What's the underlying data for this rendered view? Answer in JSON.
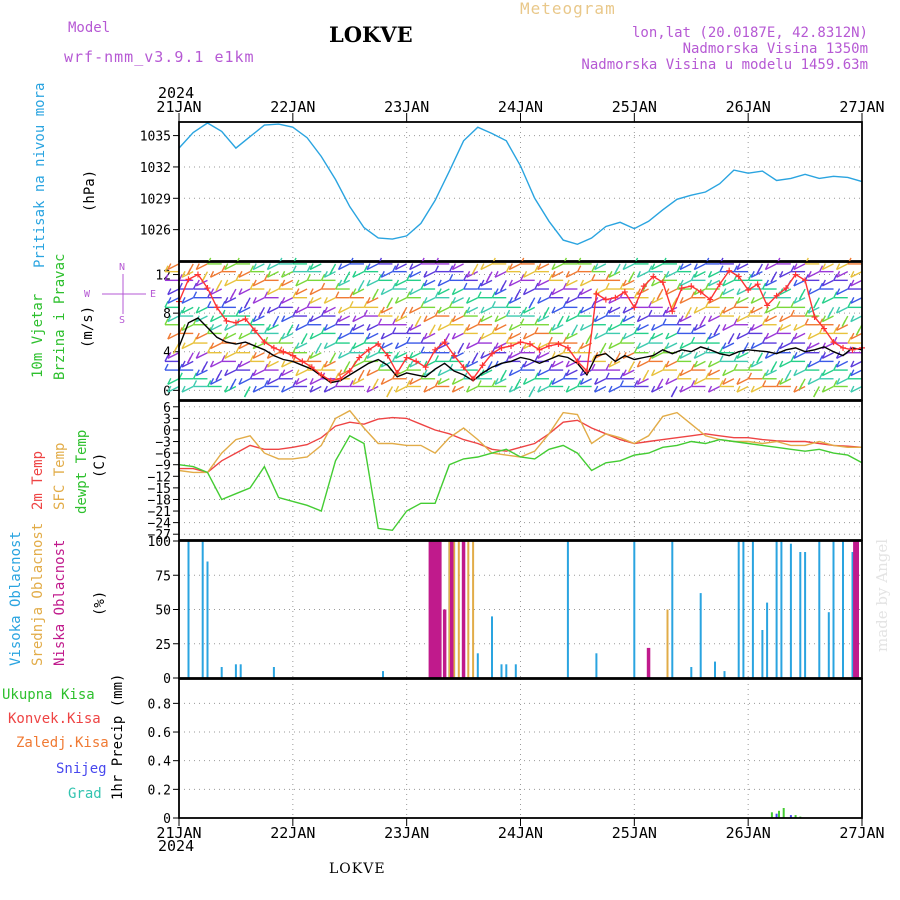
{
  "header": {
    "model_label": "Model",
    "model_name": "wrf-nmm_v3.9.1 e1km",
    "station": "LOKVE",
    "meteogram": "Meteogram",
    "lonlat": "lon,lat (20.0187E, 42.8312N)",
    "elev": "Nadmorska Visina 1350m",
    "elev_model": "Nadmorska Visina u modelu 1459.63m",
    "year_top": "2024",
    "year_bottom": "2024",
    "footer": "LOKVE",
    "watermark": "made by Angel"
  },
  "chart_data": [
    {
      "type": "line",
      "panel": "pressure",
      "ylabel_parts": [
        "Pritisak na nivou mora",
        "(hPa)"
      ],
      "ylim": [
        1023,
        1036.3
      ],
      "yticks": [
        1026,
        1029,
        1032,
        1035
      ],
      "ytick_labels": [
        "1026",
        "1029",
        "1032",
        "1035"
      ],
      "grid": true,
      "colors": [
        "#2aa4e0"
      ],
      "series": [
        {
          "name": "Pritisak na nivou mora",
          "x": [
            0,
            3,
            6,
            9,
            12,
            15,
            18,
            21,
            24,
            27,
            30,
            33,
            36,
            39,
            42,
            45,
            48,
            51,
            54,
            57,
            60,
            63,
            66,
            69,
            72,
            75,
            78,
            81,
            84,
            87,
            90,
            93,
            96,
            99,
            102,
            105,
            108,
            111,
            114,
            117,
            120,
            123,
            126,
            129,
            132,
            135,
            138,
            141,
            144
          ],
          "values": [
            1033.8,
            1035.3,
            1036.2,
            1035.4,
            1033.8,
            1034.9,
            1036.0,
            1036.1,
            1035.8,
            1034.8,
            1033.0,
            1030.8,
            1028.2,
            1026.2,
            1025.2,
            1025.1,
            1025.4,
            1026.6,
            1028.8,
            1031.6,
            1034.5,
            1035.8,
            1035.2,
            1034.5,
            1032.1,
            1029.0,
            1026.8,
            1025.0,
            1024.6,
            1025.2,
            1026.3,
            1026.7,
            1026.1,
            1026.8,
            1027.9,
            1028.9,
            1029.3,
            1029.6,
            1030.4,
            1031.7,
            1031.4,
            1031.6,
            1030.7,
            1030.9,
            1031.3,
            1030.9,
            1031.1,
            1031.0,
            1030.6
          ]
        }
      ]
    },
    {
      "type": "line",
      "panel": "wind",
      "ylabel_parts": [
        "10m Vjetar",
        "Brzina i Pravac",
        "(m/s)"
      ],
      "compass": {
        "n": "N",
        "s": "S",
        "e": "E",
        "w": "W"
      },
      "ylim": [
        -1,
        13.3
      ],
      "yticks": [
        0,
        4,
        8,
        12
      ],
      "ytick_labels": [
        "0",
        "4",
        "8",
        "12"
      ],
      "grid": true,
      "colors": [
        "#000000",
        "#ff3333"
      ],
      "series": [
        {
          "name": "Brzina",
          "x": [
            0,
            2,
            4,
            6,
            8,
            10,
            12,
            14,
            16,
            18,
            20,
            22,
            24,
            26,
            28,
            30,
            32,
            34,
            36,
            38,
            40,
            42,
            44,
            46,
            48,
            50,
            52,
            54,
            56,
            58,
            60,
            62,
            64,
            66,
            68,
            70,
            72,
            74,
            76,
            78,
            80,
            82,
            84,
            86,
            88,
            90,
            92,
            94,
            96,
            98,
            100,
            102,
            104,
            106,
            108,
            110,
            112,
            114,
            116,
            118,
            120,
            122,
            124,
            126,
            128,
            130,
            132,
            134,
            136,
            138,
            140,
            142,
            144
          ],
          "values": [
            4.5,
            7.0,
            7.5,
            6.5,
            5.5,
            5.0,
            4.8,
            5.0,
            4.6,
            4.2,
            3.6,
            3.2,
            3.0,
            2.6,
            2.2,
            1.5,
            0.8,
            1.0,
            1.6,
            2.2,
            2.8,
            3.2,
            2.6,
            1.4,
            1.8,
            1.6,
            1.4,
            2.2,
            2.8,
            2.0,
            1.6,
            1.0,
            1.8,
            2.4,
            2.8,
            3.0,
            3.4,
            3.2,
            2.8,
            3.2,
            3.6,
            3.4,
            2.8,
            1.6,
            3.6,
            3.8,
            3.0,
            3.6,
            3.2,
            3.4,
            3.6,
            4.2,
            3.8,
            4.2,
            4.0,
            4.5,
            4.2,
            3.8,
            3.6,
            4.0,
            4.2,
            4.1,
            4.0,
            3.8,
            4.2,
            4.4,
            4.0,
            4.2,
            4.5,
            4.0,
            3.6,
            4.4,
            4.2
          ]
        },
        {
          "name": "Udari",
          "x": [
            0,
            2,
            4,
            6,
            8,
            10,
            12,
            14,
            16,
            18,
            20,
            22,
            24,
            26,
            28,
            30,
            32,
            34,
            36,
            38,
            40,
            42,
            44,
            46,
            48,
            50,
            52,
            54,
            56,
            58,
            60,
            62,
            64,
            66,
            68,
            70,
            72,
            74,
            76,
            78,
            80,
            82,
            84,
            86,
            88,
            90,
            92,
            94,
            96,
            98,
            100,
            102,
            104,
            106,
            108,
            110,
            112,
            114,
            116,
            118,
            120,
            122,
            124,
            126,
            128,
            130,
            132,
            134,
            136,
            138,
            140,
            142,
            144
          ],
          "values": [
            9.2,
            11.5,
            12.0,
            10.6,
            8.6,
            7.2,
            7.0,
            7.4,
            6.2,
            5.0,
            4.4,
            4.0,
            3.6,
            3.0,
            2.4,
            1.6,
            1.0,
            1.2,
            2.0,
            3.4,
            4.2,
            4.8,
            3.6,
            1.8,
            3.4,
            3.0,
            2.4,
            4.2,
            5.0,
            3.6,
            2.4,
            1.2,
            2.6,
            3.8,
            4.4,
            4.6,
            5.0,
            4.8,
            4.2,
            4.6,
            4.8,
            4.4,
            3.0,
            2.0,
            10.0,
            9.4,
            9.6,
            10.2,
            8.6,
            10.8,
            11.8,
            11.2,
            8.2,
            10.6,
            10.8,
            10.2,
            9.4,
            11.0,
            12.4,
            11.8,
            10.4,
            11.0,
            8.8,
            9.8,
            10.6,
            12.0,
            11.4,
            7.6,
            6.4,
            5.0,
            4.4,
            4.2,
            4.4
          ]
        }
      ]
    },
    {
      "type": "line",
      "panel": "temperature",
      "ylabel_parts": [
        "2m Temp",
        "SFC Temp",
        "dewpt Temp",
        "(C)"
      ],
      "ylim": [
        -28.5,
        7.5
      ],
      "yticks": [
        -27,
        -24,
        -21,
        -18,
        -15,
        -12,
        -9,
        -6,
        -3,
        0,
        3,
        6
      ],
      "ytick_labels": [
        "−27",
        "−24",
        "−21",
        "−18",
        "−15",
        "−12",
        "−9",
        "−6",
        "−3",
        "0",
        "3",
        "6"
      ],
      "grid": true,
      "colors": [
        "#ee4444",
        "#e2ac48",
        "#44cc33"
      ],
      "series": [
        {
          "name": "2m Temp",
          "x": [
            0,
            3,
            6,
            9,
            12,
            15,
            18,
            21,
            24,
            27,
            30,
            33,
            36,
            39,
            42,
            45,
            48,
            51,
            54,
            57,
            60,
            63,
            66,
            69,
            72,
            75,
            78,
            81,
            84,
            87,
            90,
            93,
            96,
            99,
            102,
            105,
            108,
            111,
            114,
            117,
            120,
            123,
            126,
            129,
            132,
            135,
            138,
            141,
            144
          ],
          "values": [
            -10,
            -10,
            -11,
            -8,
            -6,
            -4,
            -5,
            -5,
            -4.5,
            -3.8,
            -2,
            1,
            2,
            1.5,
            2.8,
            3.2,
            3,
            1.5,
            0,
            -1,
            -2.5,
            -3.5,
            -5,
            -5.5,
            -4.5,
            -3.5,
            -1,
            2,
            2.5,
            0.5,
            -1,
            -2.5,
            -3.5,
            -3,
            -2.5,
            -2,
            -1.5,
            -1,
            -1.5,
            -2,
            -2,
            -2.5,
            -2.8,
            -3,
            -3,
            -3.5,
            -4,
            -4.2,
            -4.5
          ]
        },
        {
          "name": "SFC Temp",
          "x": [
            0,
            3,
            6,
            9,
            12,
            15,
            18,
            21,
            24,
            27,
            30,
            33,
            36,
            39,
            42,
            45,
            48,
            51,
            54,
            57,
            60,
            63,
            66,
            69,
            72,
            75,
            78,
            81,
            84,
            87,
            90,
            93,
            96,
            99,
            102,
            105,
            108,
            111,
            114,
            117,
            120,
            123,
            126,
            129,
            132,
            135,
            138,
            141,
            144
          ],
          "values": [
            -10.5,
            -11,
            -11,
            -6,
            -2.5,
            -1.5,
            -6,
            -7.5,
            -7.5,
            -7,
            -4,
            3,
            5,
            0.5,
            -3.5,
            -3.5,
            -4,
            -4,
            -6,
            -2,
            0.5,
            -2.5,
            -6,
            -6.5,
            -7,
            -5.5,
            -1,
            4.5,
            4,
            -3.5,
            -1,
            -2,
            -3.5,
            -1.5,
            3.5,
            4.5,
            1.5,
            -1.5,
            -2.5,
            -3,
            -3,
            -3.5,
            -3,
            -4,
            -4,
            -3,
            -4,
            -4.5,
            -4.5
          ]
        },
        {
          "name": "dewpt Temp",
          "x": [
            0,
            3,
            6,
            9,
            12,
            15,
            18,
            21,
            24,
            27,
            30,
            33,
            36,
            39,
            42,
            45,
            48,
            51,
            54,
            57,
            60,
            63,
            66,
            69,
            72,
            75,
            78,
            81,
            84,
            87,
            90,
            93,
            96,
            99,
            102,
            105,
            108,
            111,
            114,
            117,
            120,
            123,
            126,
            129,
            132,
            135,
            138,
            141,
            144
          ],
          "values": [
            -9,
            -9.5,
            -11,
            -18,
            -16.5,
            -15,
            -9.5,
            -17.5,
            -18.5,
            -19.5,
            -21,
            -8,
            -1.5,
            -3.5,
            -25.5,
            -26,
            -21,
            -19,
            -19,
            -9,
            -7.5,
            -7,
            -6,
            -5,
            -7,
            -7.5,
            -5,
            -4,
            -6,
            -10.5,
            -8.5,
            -8,
            -6.5,
            -6,
            -4.5,
            -4,
            -3,
            -3.5,
            -2.5,
            -3,
            -3.5,
            -4,
            -4.5,
            -5,
            -5.5,
            -5,
            -6,
            -6.5,
            -8.5
          ]
        }
      ]
    },
    {
      "type": "bar",
      "panel": "clouds",
      "ylabel_parts": [
        "Visoka Oblacnost",
        "Srednja Oblacnost",
        "Niska Oblacnost",
        "(%)"
      ],
      "ylim": [
        0,
        100
      ],
      "yticks": [
        0,
        25,
        50,
        75,
        100
      ],
      "ytick_labels": [
        "0",
        "25",
        "50",
        "75",
        "100"
      ],
      "grid": true,
      "colors": [
        "#2aa4e0",
        "#e2ac48",
        "#c01a8c"
      ],
      "series": [
        {
          "name": "Niska Oblacnost",
          "x": [
            2,
            5,
            6,
            9,
            12,
            13,
            20,
            43,
            57,
            58,
            63,
            66,
            68,
            69,
            71,
            82,
            88,
            96,
            104,
            108,
            110,
            113,
            115,
            118,
            119,
            121,
            123,
            124,
            126,
            127,
            129,
            131,
            132,
            135,
            137,
            138,
            140,
            142
          ],
          "values": [
            100,
            100,
            85,
            8,
            10,
            10,
            8,
            5,
            100,
            100,
            18,
            45,
            10,
            10,
            10,
            100,
            18,
            100,
            100,
            8,
            62,
            12,
            5,
            100,
            100,
            100,
            35,
            55,
            100,
            100,
            98,
            92,
            92,
            100,
            48,
            100,
            100,
            92
          ]
        },
        {
          "name": "Srednja Oblacnost",
          "x": [
            57,
            58,
            59,
            61,
            62,
            103
          ],
          "values": [
            100,
            100,
            100,
            100,
            100,
            50
          ]
        },
        {
          "name": "Visoka Oblacnost",
          "x": [
            53,
            53.5,
            54,
            54.5,
            55,
            56,
            57.5,
            60,
            99,
            142.5,
            143
          ],
          "values": [
            100,
            100,
            100,
            100,
            100,
            50,
            100,
            100,
            22,
            100,
            100
          ]
        }
      ]
    },
    {
      "type": "bar",
      "panel": "precip",
      "ylabel_parts": [
        "Ukupna Kisa",
        "Konvek.Kisa",
        "Zaledj.Kisa",
        "Snijeg",
        "Grad",
        "1hr Precip (mm)"
      ],
      "ylim": [
        0,
        0.97
      ],
      "yticks": [
        0,
        0.2,
        0.4,
        0.6,
        0.8
      ],
      "ytick_labels": [
        "0",
        "0.2",
        "0.4",
        "0.6",
        "0.8"
      ],
      "grid": true,
      "colors": [
        "#44cc33",
        "#ee4444",
        "#f07a33",
        "#4848ee",
        "#33c4b0"
      ],
      "series": [
        {
          "name": "Ukupna Kisa",
          "x": [
            125,
            126.5,
            127.5,
            130,
            131
          ],
          "values": [
            0.04,
            0.05,
            0.07,
            0.02,
            0.01
          ]
        },
        {
          "name": "Konvek.Kisa",
          "x": [],
          "values": []
        },
        {
          "name": "Zaledj.Kisa",
          "x": [],
          "values": []
        },
        {
          "name": "Snijeg",
          "x": [
            126,
            129
          ],
          "values": [
            0.03,
            0.02
          ]
        },
        {
          "name": "Grad",
          "x": [],
          "values": []
        }
      ]
    }
  ],
  "x_axis": {
    "xlim": [
      0,
      144
    ],
    "ticks": [
      0,
      24,
      48,
      72,
      96,
      120,
      144
    ],
    "labels": [
      "21JAN",
      "22JAN",
      "23JAN",
      "24JAN",
      "25JAN",
      "26JAN",
      "27JAN"
    ]
  },
  "wind_barbs": {
    "directions": [
      "NE",
      "NE",
      "E",
      "E",
      "NE",
      "N",
      "NE",
      "E",
      "NE",
      "E"
    ],
    "rows": [
      0.4,
      1.2,
      2.1,
      3.0,
      3.9,
      4.9,
      5.9,
      6.8,
      7.7,
      8.6,
      9.6,
      10.5,
      11.4,
      12.3,
      13.1
    ],
    "colors": [
      "#3fcbb0",
      "#25d08a",
      "#3b5ae8",
      "#5b3bdc",
      "#9a38d8",
      "#e8c23c",
      "#f07a33",
      "#7ad83a"
    ]
  }
}
